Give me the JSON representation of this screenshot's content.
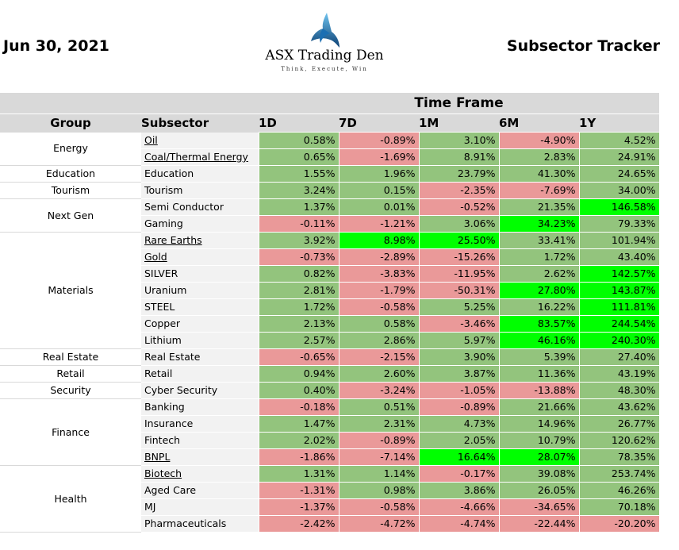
{
  "header": {
    "date": "Jun 30, 2021",
    "title": "Subsector Tracker",
    "logo_name": "ASX Trading Den",
    "logo_tagline": "Think, Execute, Win"
  },
  "colors": {
    "positive": "#93c47d",
    "negative": "#ea9999",
    "highlight": "#00ff00",
    "header_bg": "#d9d9d9"
  },
  "table": {
    "time_frame_label": "Time Frame",
    "columns": [
      "Group",
      "Subsector",
      "1D",
      "7D",
      "1M",
      "6M",
      "1Y"
    ],
    "groups": [
      {
        "name": "Energy",
        "rows": [
          {
            "subsector": "Oil",
            "underline": true,
            "values": [
              "0.58%",
              "-0.89%",
              "3.10%",
              "-4.90%",
              "4.52%"
            ],
            "colors": [
              "g",
              "r",
              "g",
              "r",
              "g"
            ]
          },
          {
            "subsector": "Coal/Thermal Energy",
            "underline": true,
            "values": [
              "0.65%",
              "-1.69%",
              "8.91%",
              "2.83%",
              "24.91%"
            ],
            "colors": [
              "g",
              "r",
              "g",
              "g",
              "g"
            ]
          }
        ]
      },
      {
        "name": "Education",
        "rows": [
          {
            "subsector": "Education",
            "underline": false,
            "values": [
              "1.55%",
              "1.96%",
              "23.79%",
              "41.30%",
              "24.65%"
            ],
            "colors": [
              "g",
              "g",
              "g",
              "g",
              "g"
            ]
          }
        ]
      },
      {
        "name": "Tourism",
        "rows": [
          {
            "subsector": "Tourism",
            "underline": false,
            "values": [
              "3.24%",
              "0.15%",
              "-2.35%",
              "-7.69%",
              "34.00%"
            ],
            "colors": [
              "g",
              "g",
              "r",
              "r",
              "g"
            ]
          }
        ]
      },
      {
        "name": "Next Gen",
        "rows": [
          {
            "subsector": "Semi Conductor",
            "underline": false,
            "values": [
              "1.37%",
              "0.01%",
              "-0.52%",
              "21.35%",
              "146.58%"
            ],
            "colors": [
              "g",
              "g",
              "r",
              "g",
              "b"
            ]
          },
          {
            "subsector": "Gaming",
            "underline": false,
            "values": [
              "-0.11%",
              "-1.21%",
              "3.06%",
              "34.23%",
              "79.33%"
            ],
            "colors": [
              "r",
              "r",
              "g",
              "b",
              "g"
            ]
          }
        ]
      },
      {
        "name": "Materials",
        "rows": [
          {
            "subsector": "Rare Earths",
            "underline": true,
            "values": [
              "3.92%",
              "8.98%",
              "25.50%",
              "33.41%",
              "101.94%"
            ],
            "colors": [
              "g",
              "b",
              "b",
              "g",
              "g"
            ]
          },
          {
            "subsector": "Gold",
            "underline": true,
            "values": [
              "-0.73%",
              "-2.89%",
              "-15.26%",
              "1.72%",
              "43.40%"
            ],
            "colors": [
              "r",
              "r",
              "r",
              "g",
              "g"
            ]
          },
          {
            "subsector": "SILVER",
            "underline": false,
            "values": [
              "0.82%",
              "-3.83%",
              "-11.95%",
              "2.62%",
              "142.57%"
            ],
            "colors": [
              "g",
              "r",
              "r",
              "g",
              "b"
            ]
          },
          {
            "subsector": "Uranium",
            "underline": false,
            "values": [
              "2.81%",
              "-1.79%",
              "-50.31%",
              "27.80%",
              "143.87%"
            ],
            "colors": [
              "g",
              "r",
              "r",
              "b",
              "b"
            ]
          },
          {
            "subsector": "STEEL",
            "underline": false,
            "values": [
              "1.72%",
              "-0.58%",
              "5.25%",
              "16.22%",
              "111.81%"
            ],
            "colors": [
              "g",
              "r",
              "g",
              "g",
              "b"
            ]
          },
          {
            "subsector": "Copper",
            "underline": false,
            "values": [
              "2.13%",
              "0.58%",
              "-3.46%",
              "83.57%",
              "244.54%"
            ],
            "colors": [
              "g",
              "g",
              "r",
              "b",
              "b"
            ]
          },
          {
            "subsector": "Lithium",
            "underline": false,
            "values": [
              "2.57%",
              "2.86%",
              "5.97%",
              "46.16%",
              "240.30%"
            ],
            "colors": [
              "g",
              "g",
              "g",
              "b",
              "b"
            ]
          }
        ]
      },
      {
        "name": "Real Estate",
        "rows": [
          {
            "subsector": "Real Estate",
            "underline": false,
            "values": [
              "-0.65%",
              "-2.15%",
              "3.90%",
              "5.39%",
              "27.40%"
            ],
            "colors": [
              "r",
              "r",
              "g",
              "g",
              "g"
            ]
          }
        ]
      },
      {
        "name": "Retail",
        "rows": [
          {
            "subsector": "Retail",
            "underline": false,
            "values": [
              "0.94%",
              "2.60%",
              "3.87%",
              "11.36%",
              "43.19%"
            ],
            "colors": [
              "g",
              "g",
              "g",
              "g",
              "g"
            ]
          }
        ]
      },
      {
        "name": "Security",
        "rows": [
          {
            "subsector": "Cyber Security",
            "underline": false,
            "values": [
              "0.40%",
              "-3.24%",
              "-1.05%",
              "-13.88%",
              "48.30%"
            ],
            "colors": [
              "g",
              "r",
              "r",
              "r",
              "g"
            ]
          }
        ]
      },
      {
        "name": "Finance",
        "rows": [
          {
            "subsector": "Banking",
            "underline": false,
            "values": [
              "-0.18%",
              "0.51%",
              "-0.89%",
              "21.66%",
              "43.62%"
            ],
            "colors": [
              "r",
              "g",
              "r",
              "g",
              "g"
            ]
          },
          {
            "subsector": "Insurance",
            "underline": false,
            "values": [
              "1.47%",
              "2.31%",
              "4.73%",
              "14.96%",
              "26.77%"
            ],
            "colors": [
              "g",
              "g",
              "g",
              "g",
              "g"
            ]
          },
          {
            "subsector": "Fintech",
            "underline": false,
            "values": [
              "2.02%",
              "-0.89%",
              "2.05%",
              "10.79%",
              "120.62%"
            ],
            "colors": [
              "g",
              "r",
              "g",
              "g",
              "g"
            ]
          },
          {
            "subsector": "BNPL",
            "underline": true,
            "values": [
              "-1.86%",
              "-7.14%",
              "16.64%",
              "28.07%",
              "78.35%"
            ],
            "colors": [
              "r",
              "r",
              "b",
              "b",
              "g"
            ]
          }
        ]
      },
      {
        "name": "Health",
        "rows": [
          {
            "subsector": "Biotech",
            "underline": true,
            "values": [
              "1.31%",
              "1.14%",
              "-0.17%",
              "39.08%",
              "253.74%"
            ],
            "colors": [
              "g",
              "g",
              "r",
              "g",
              "g"
            ]
          },
          {
            "subsector": "Aged Care",
            "underline": false,
            "values": [
              "-1.31%",
              "0.98%",
              "3.86%",
              "26.05%",
              "46.26%"
            ],
            "colors": [
              "r",
              "g",
              "g",
              "g",
              "g"
            ]
          },
          {
            "subsector": "MJ",
            "underline": false,
            "values": [
              "-1.37%",
              "-0.58%",
              "-4.66%",
              "-34.65%",
              "70.18%"
            ],
            "colors": [
              "r",
              "r",
              "r",
              "r",
              "g"
            ]
          },
          {
            "subsector": "Pharmaceuticals",
            "underline": false,
            "values": [
              "-2.42%",
              "-4.72%",
              "-4.74%",
              "-22.44%",
              "-20.20%"
            ],
            "colors": [
              "r",
              "r",
              "r",
              "r",
              "r"
            ]
          }
        ]
      }
    ]
  }
}
